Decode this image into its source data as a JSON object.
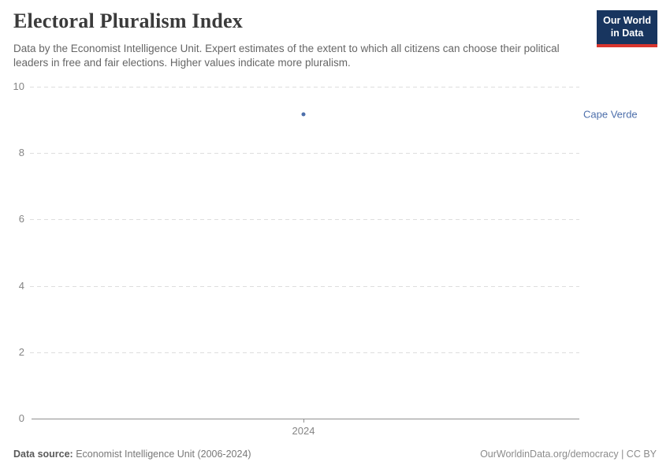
{
  "header": {
    "title": "Electoral Pluralism Index",
    "subtitle": "Data by the Economist Intelligence Unit. Expert estimates of the extent to which all citizens can choose their political leaders in free and fair elections. Higher values indicate more pluralism.",
    "logo": {
      "line1": "Our World",
      "line2": "in Data"
    }
  },
  "chart_data": {
    "type": "scatter",
    "title": "Electoral Pluralism Index",
    "series": [
      {
        "name": "Cape Verde",
        "x": [
          2024
        ],
        "values": [
          9.17
        ]
      }
    ],
    "entity_label": "Cape Verde",
    "xlabel": "",
    "ylabel": "",
    "ylim": [
      0,
      10
    ],
    "yticks": [
      0,
      2,
      4,
      6,
      8,
      10
    ],
    "xticks": [
      2024
    ],
    "grid": "horizontal-dashed",
    "legend_position": "right-of-point"
  },
  "footer": {
    "source_label": "Data source:",
    "source_text": " Economist Intelligence Unit (2006-2024)",
    "credit": "OurWorldinData.org/democracy | CC BY"
  },
  "colors": {
    "accent_blue": "#4d6fab",
    "logo_bg": "#18355f",
    "logo_stripe": "#d8352e",
    "grid_line": "#dedede",
    "axis_line": "#8f8f8f",
    "tick_label": "#858585",
    "title_text": "#3b3b3b",
    "subtitle_text": "#666666"
  }
}
